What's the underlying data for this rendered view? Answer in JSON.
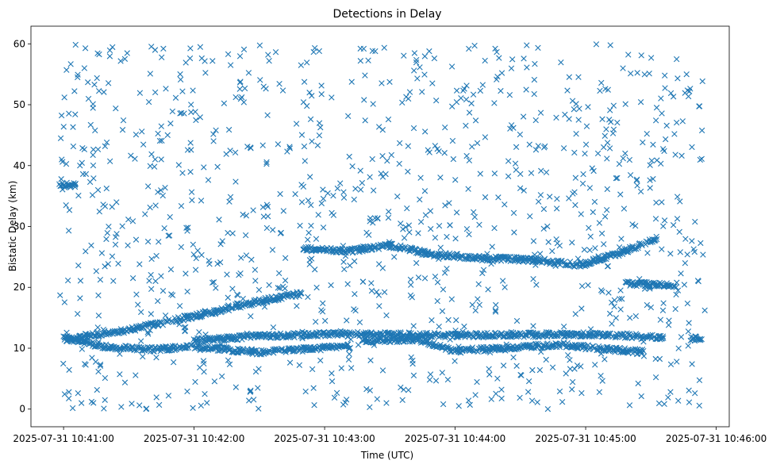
{
  "chart_data": {
    "type": "scatter",
    "title": "Detections in Delay",
    "xlabel": "Time (UTC)",
    "ylabel": "Bistatic Delay (km)",
    "marker": "x",
    "series_color": "#1f77b4",
    "x_unit": "minutes after 2025-07-31 10:40:00",
    "xlim": [
      0.75,
      6.1
    ],
    "ylim": [
      -2.9,
      62.9
    ],
    "xticks": [
      {
        "value": 1,
        "label": "2025-07-31 10:41:00"
      },
      {
        "value": 2,
        "label": "2025-07-31 10:42:00"
      },
      {
        "value": 3,
        "label": "2025-07-31 10:43:00"
      },
      {
        "value": 4,
        "label": "2025-07-31 10:44:00"
      },
      {
        "value": 5,
        "label": "2025-07-31 10:45:00"
      },
      {
        "value": 6,
        "label": "2025-07-31 10:46:00"
      }
    ],
    "yticks": [
      0,
      10,
      20,
      30,
      40,
      50,
      60
    ],
    "grid": false,
    "legend": "none",
    "x_data_span": [
      0.97,
      5.92
    ],
    "tracks": [
      {
        "name": "rising track",
        "points": [
          [
            1.0,
            11.5
          ],
          [
            1.5,
            13.0
          ],
          [
            2.0,
            15.3
          ],
          [
            2.5,
            17.7
          ],
          [
            2.83,
            19.0
          ]
        ]
      },
      {
        "name": "upper track",
        "points": [
          [
            2.83,
            26.4
          ],
          [
            3.2,
            26.0
          ],
          [
            3.5,
            26.9
          ],
          [
            3.8,
            25.5
          ],
          [
            4.2,
            24.8
          ],
          [
            4.6,
            24.5
          ],
          [
            4.95,
            23.7
          ],
          [
            5.25,
            25.5
          ],
          [
            5.55,
            28.0
          ]
        ]
      },
      {
        "name": "lower track A",
        "points": [
          [
            1.0,
            11.6
          ],
          [
            1.3,
            10.3
          ],
          [
            1.7,
            9.8
          ],
          [
            2.0,
            10.3
          ],
          [
            2.5,
            9.3
          ],
          [
            3.0,
            10.1
          ],
          [
            3.2,
            10.3
          ]
        ]
      },
      {
        "name": "lower track B",
        "points": [
          [
            2.0,
            11.2
          ],
          [
            2.5,
            12.0
          ],
          [
            3.0,
            12.3
          ],
          [
            3.5,
            12.3
          ],
          [
            4.0,
            12.1
          ],
          [
            4.5,
            12.2
          ],
          [
            5.0,
            12.3
          ],
          [
            5.4,
            12.0
          ],
          [
            5.6,
            11.7
          ]
        ]
      },
      {
        "name": "lower track C",
        "points": [
          [
            3.3,
            11.2
          ],
          [
            3.7,
            11.5
          ],
          [
            4.0,
            9.6
          ],
          [
            4.4,
            10.0
          ],
          [
            4.8,
            10.6
          ],
          [
            5.2,
            9.8
          ],
          [
            5.45,
            9.4
          ]
        ]
      },
      {
        "name": "short track 36.7",
        "points": [
          [
            0.97,
            36.8
          ],
          [
            1.1,
            36.8
          ]
        ]
      },
      {
        "name": "short track 20.5",
        "points": [
          [
            5.3,
            20.6
          ],
          [
            5.7,
            20.4
          ]
        ]
      },
      {
        "name": "short track 11.6",
        "points": [
          [
            5.8,
            11.6
          ],
          [
            5.9,
            11.6
          ]
        ]
      }
    ],
    "clutter_points_approx": 1100,
    "clutter_y_range": [
      0,
      60
    ]
  }
}
